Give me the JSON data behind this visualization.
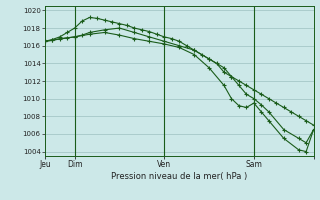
{
  "background_color": "#cce8e8",
  "grid_color": "#aacccc",
  "line_color": "#1a5c1a",
  "title": "Pression niveau de la mer( hPa )",
  "ylim": [
    1003.5,
    1020.5
  ],
  "yticks": [
    1004,
    1006,
    1008,
    1010,
    1012,
    1014,
    1016,
    1018,
    1020
  ],
  "xlim": [
    0,
    216
  ],
  "x_tick_positions": [
    0,
    24,
    96,
    168,
    216
  ],
  "x_tick_labels": [
    "Jeu",
    "Dim",
    "Ven",
    "Sam",
    ""
  ],
  "vlines": [
    24,
    96,
    168
  ],
  "series1_x": [
    0,
    6,
    12,
    18,
    24,
    30,
    36,
    42,
    48,
    54,
    60,
    66,
    72,
    78,
    84,
    90,
    96,
    102,
    108,
    114,
    120,
    126,
    132,
    138,
    144,
    150,
    156,
    162,
    168,
    174,
    180,
    186,
    192,
    198,
    204,
    210,
    216
  ],
  "series1_y": [
    1016.5,
    1016.7,
    1017.0,
    1017.5,
    1018.0,
    1018.8,
    1019.2,
    1019.1,
    1018.9,
    1018.7,
    1018.5,
    1018.3,
    1018.0,
    1017.8,
    1017.6,
    1017.3,
    1017.0,
    1016.8,
    1016.5,
    1016.0,
    1015.5,
    1015.0,
    1014.5,
    1014.0,
    1013.0,
    1012.5,
    1012.0,
    1011.5,
    1011.0,
    1010.5,
    1010.0,
    1009.5,
    1009.0,
    1008.5,
    1008.0,
    1007.5,
    1007.0
  ],
  "series2_x": [
    0,
    6,
    12,
    18,
    24,
    30,
    36,
    48,
    60,
    72,
    84,
    96,
    108,
    120,
    132,
    144,
    150,
    156,
    162,
    168,
    174,
    180,
    192,
    204,
    210,
    216
  ],
  "series2_y": [
    1016.5,
    1016.6,
    1016.8,
    1016.9,
    1017.0,
    1017.2,
    1017.5,
    1017.8,
    1018.0,
    1017.5,
    1017.0,
    1016.5,
    1016.0,
    1015.5,
    1014.5,
    1013.5,
    1012.5,
    1011.5,
    1010.5,
    1010.0,
    1009.3,
    1008.5,
    1006.5,
    1005.5,
    1005.0,
    1006.5
  ],
  "series3_x": [
    0,
    24,
    36,
    48,
    60,
    72,
    84,
    96,
    108,
    120,
    132,
    144,
    150,
    156,
    162,
    168,
    174,
    180,
    192,
    204,
    210,
    216
  ],
  "series3_y": [
    1016.5,
    1017.0,
    1017.3,
    1017.5,
    1017.2,
    1016.8,
    1016.5,
    1016.2,
    1015.8,
    1015.0,
    1013.5,
    1011.5,
    1010.0,
    1009.2,
    1009.0,
    1009.5,
    1008.5,
    1007.5,
    1005.5,
    1004.2,
    1004.0,
    1006.5
  ],
  "marker": "+"
}
